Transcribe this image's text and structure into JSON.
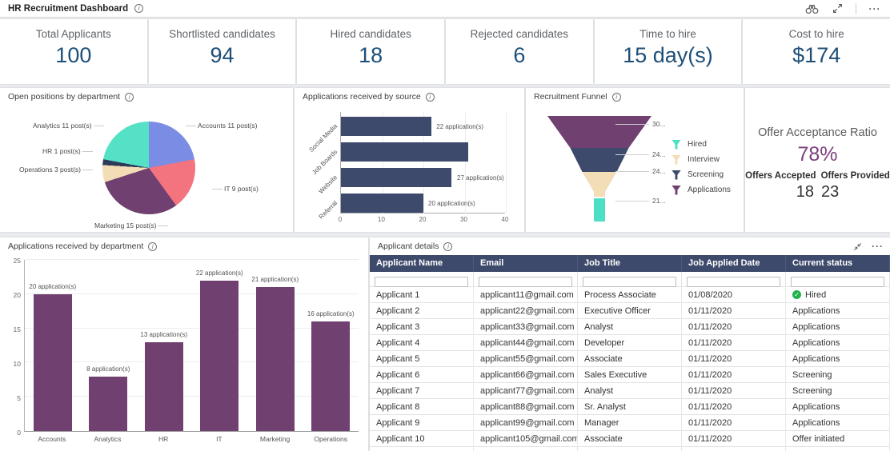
{
  "app": {
    "title": "HR Recruitment Dashboard",
    "toolbar_icons": [
      "binoculars-icon",
      "expand-icon",
      "more-icon"
    ]
  },
  "icons": {
    "info_glyph": "i",
    "more_glyph": "···",
    "check_glyph": "✓"
  },
  "kpis": [
    {
      "label": "Total Applicants",
      "value": "100"
    },
    {
      "label": "Shortlisted candidates",
      "value": "94"
    },
    {
      "label": "Hired candidates",
      "value": "18"
    },
    {
      "label": "Rejected candidates",
      "value": "6"
    },
    {
      "label": "Time to hire",
      "value": "15 day(s)"
    },
    {
      "label": "Cost to hire",
      "value": "$174"
    }
  ],
  "offer_panel": {
    "title": "Offer Acceptance Ratio",
    "ratio": "78%",
    "accepted_label": "Offers Accepted",
    "provided_label": "Offers Provided",
    "accepted_value": "18",
    "provided_value": "23",
    "ratio_color": "#7c3f7e"
  },
  "chart_data": [
    {
      "id": "open_positions",
      "type": "pie",
      "title": "Open positions by department",
      "categories": [
        "Accounts",
        "IT",
        "Marketing",
        "Operations",
        "HR",
        "Analytics"
      ],
      "values": [
        11,
        9,
        15,
        3,
        1,
        11
      ],
      "point_labels": [
        "Accounts 11 post(s)",
        "IT 9 post(s)",
        "Marketing 15 post(s)",
        "Operations 3 post(s)",
        "HR 1 post(s)",
        "Analytics 11 post(s)"
      ],
      "colors": [
        "#7b8ce4",
        "#f3737f",
        "#6f4070",
        "#f2ddb6",
        "#2d3a5a",
        "#55e1c5"
      ],
      "start_angle": 0,
      "direction": "clockwise"
    },
    {
      "id": "apps_by_source",
      "type": "bar",
      "orientation": "horizontal",
      "title": "Applications received by source",
      "categories": [
        "Social Media",
        "Job Boards",
        "Website",
        "Referral"
      ],
      "values": [
        22,
        31,
        27,
        20
      ],
      "data_labels": [
        "22 application(s)",
        "",
        "27 application(s)",
        "20 application(s)"
      ],
      "x_ticks": [
        0,
        10,
        20,
        30,
        40
      ],
      "xlim": [
        0,
        40
      ],
      "bar_color": "#3d4a6b",
      "grid": true
    },
    {
      "id": "recruitment_funnel",
      "type": "funnel",
      "title": "Recruitment Funnel",
      "stages": [
        "Applications",
        "Screening",
        "Interview",
        "Hired"
      ],
      "stage_labels": [
        "30...",
        "24...",
        "24...",
        "21..."
      ],
      "colors": [
        "#6f4070",
        "#3d4a6b",
        "#f2ddb6",
        "#4cdfc3"
      ],
      "legend": [
        {
          "label": "Hired",
          "color": "#4cdfc3"
        },
        {
          "label": "Interview",
          "color": "#f2ddb6"
        },
        {
          "label": "Screening",
          "color": "#3d4a6b"
        },
        {
          "label": "Applications",
          "color": "#6f4070"
        }
      ],
      "legend_position": "right"
    },
    {
      "id": "apps_by_department",
      "type": "bar",
      "orientation": "vertical",
      "title": "Applications received by department",
      "categories": [
        "Accounts",
        "Analytics",
        "HR",
        "IT",
        "Marketing",
        "Operations"
      ],
      "values": [
        20,
        8,
        13,
        22,
        21,
        16
      ],
      "data_labels": [
        "20 application(s)",
        "8 application(s)",
        "13 application(s)",
        "22 application(s)",
        "21 application(s)",
        "16 application(s)"
      ],
      "y_ticks": [
        0,
        5,
        10,
        15,
        20,
        25
      ],
      "ylim": [
        0,
        25
      ],
      "bar_color": "#6f4070",
      "grid": true
    }
  ],
  "table_panel": {
    "title": "Applicant details",
    "columns": [
      "Applicant Name",
      "Email",
      "Job Title",
      "Job Applied Date",
      "Current status"
    ],
    "rows": [
      {
        "name": "Applicant 1",
        "email": "applicant11@gmail.com",
        "job": "Process Associate",
        "date": "01/08/2020",
        "status": "Hired",
        "status_icon": "check"
      },
      {
        "name": "Applicant 2",
        "email": "applicant22@gmail.com",
        "job": "Executive Officer",
        "date": "01/11/2020",
        "status": "Applications",
        "status_icon": ""
      },
      {
        "name": "Applicant 3",
        "email": "applicant33@gmail.com",
        "job": "Analyst",
        "date": "01/11/2020",
        "status": "Applications",
        "status_icon": ""
      },
      {
        "name": "Applicant 4",
        "email": "applicant44@gmail.com",
        "job": "Developer",
        "date": "01/11/2020",
        "status": "Applications",
        "status_icon": ""
      },
      {
        "name": "Applicant 5",
        "email": "applicant55@gmail.com",
        "job": "Associate",
        "date": "01/11/2020",
        "status": "Applications",
        "status_icon": ""
      },
      {
        "name": "Applicant 6",
        "email": "applicant66@gmail.com",
        "job": "Sales Executive",
        "date": "01/11/2020",
        "status": "Screening",
        "status_icon": ""
      },
      {
        "name": "Applicant 7",
        "email": "applicant77@gmail.com",
        "job": "Analyst",
        "date": "01/11/2020",
        "status": "Screening",
        "status_icon": ""
      },
      {
        "name": "Applicant 8",
        "email": "applicant88@gmail.com",
        "job": "Sr. Analyst",
        "date": "01/11/2020",
        "status": "Applications",
        "status_icon": ""
      },
      {
        "name": "Applicant 9",
        "email": "applicant99@gmail.com",
        "job": "Manager",
        "date": "01/11/2020",
        "status": "Applications",
        "status_icon": ""
      },
      {
        "name": "Applicant 10",
        "email": "applicant105@gmail.com",
        "job": "Associate",
        "date": "01/11/2020",
        "status": "Offer initiated",
        "status_icon": ""
      }
    ]
  }
}
